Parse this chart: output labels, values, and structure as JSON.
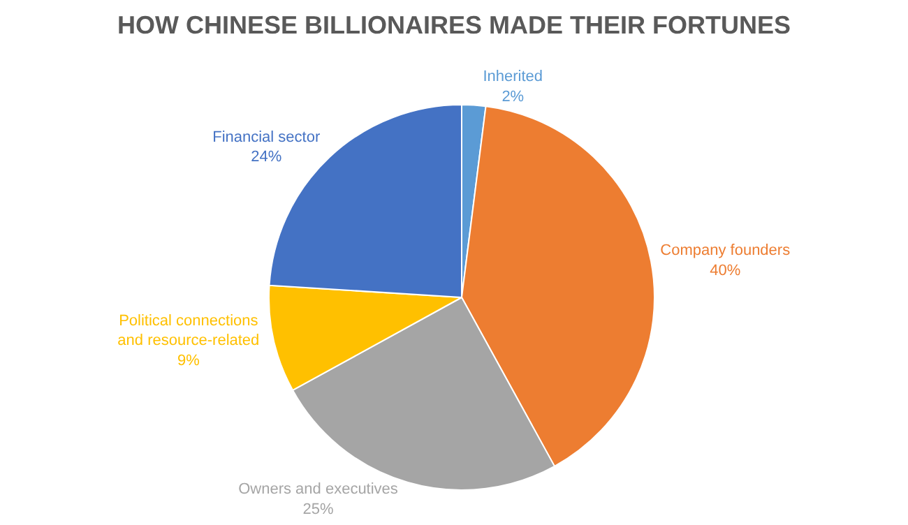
{
  "chart_data": {
    "type": "pie",
    "title": "HOW CHINESE BILLIONAIRES MADE THEIR FORTUNES",
    "categories": [
      "Inherited",
      "Company founders",
      "Owners and executives",
      "Political connections and resource-related",
      "Financial sector"
    ],
    "values": [
      2,
      40,
      25,
      9,
      24
    ],
    "value_labels": [
      "2%",
      "40%",
      "25%",
      "9%",
      "24%"
    ],
    "colors": [
      "#5b9bd5",
      "#ed7d31",
      "#a5a5a5",
      "#ffc000",
      "#4472c4"
    ],
    "legend": false
  }
}
